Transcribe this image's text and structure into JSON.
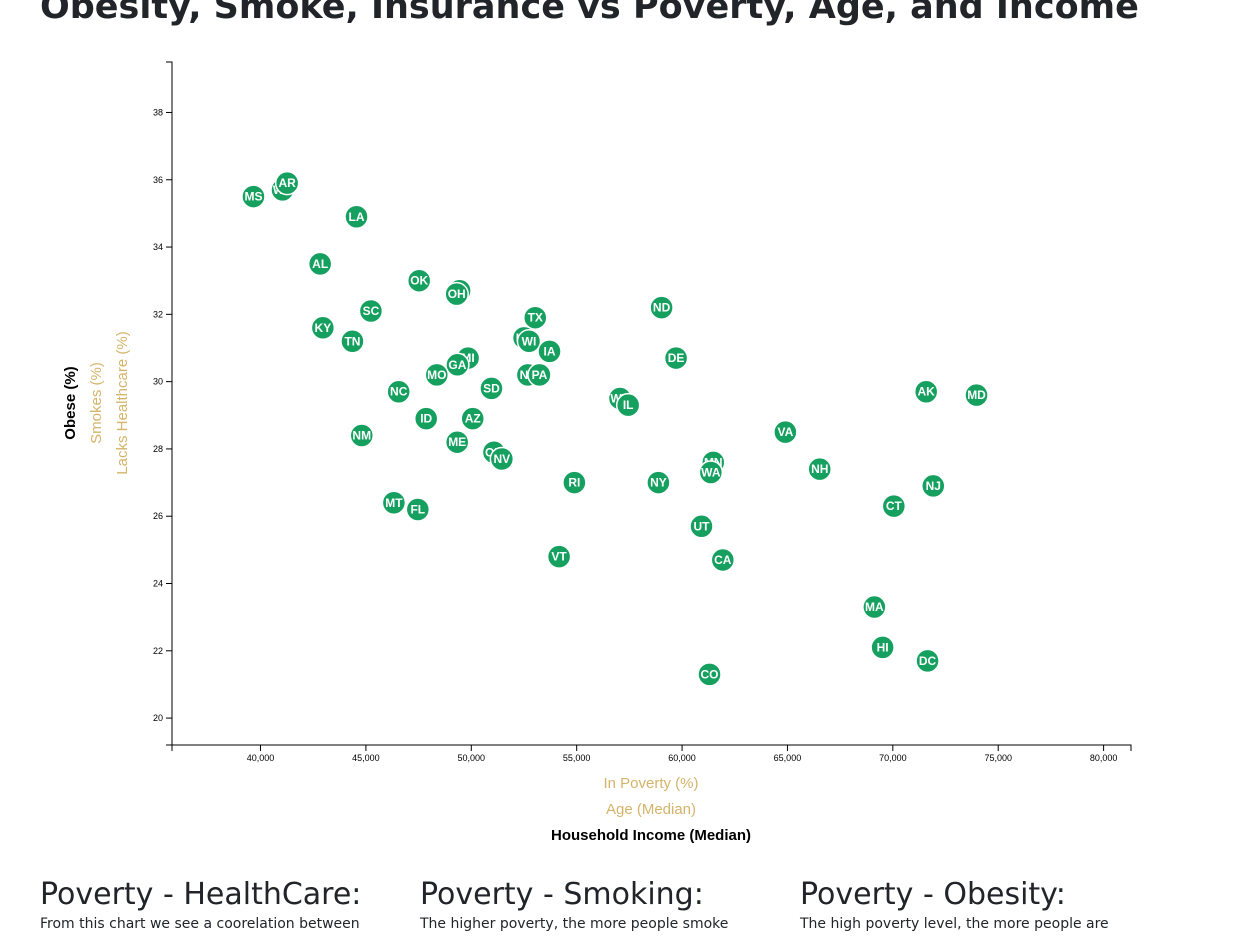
{
  "page": {
    "title": "Obesity, Smoke, Insurance vs Poverty, Age, and Income"
  },
  "chart_data": {
    "type": "scatter",
    "x_axis_labels": [
      {
        "text": "In Poverty (%)",
        "active": false
      },
      {
        "text": "Age (Median)",
        "active": false
      },
      {
        "text": "Household Income (Median)",
        "active": true
      }
    ],
    "y_axis_labels": [
      {
        "text": "Obese (%)",
        "active": true
      },
      {
        "text": "Smokes (%)",
        "active": false
      },
      {
        "text": "Lacks Healthcare (%)",
        "active": false
      }
    ],
    "xlim": [
      35800,
      81300
    ],
    "ylim": [
      19.2,
      39.5
    ],
    "x_ticks": [
      {
        "value": 40000,
        "label": "40,000"
      },
      {
        "value": 45000,
        "label": "45,000"
      },
      {
        "value": 50000,
        "label": "50,000"
      },
      {
        "value": 55000,
        "label": "55,000"
      },
      {
        "value": 60000,
        "label": "60,000"
      },
      {
        "value": 65000,
        "label": "65,000"
      },
      {
        "value": 70000,
        "label": "70,000"
      },
      {
        "value": 75000,
        "label": "75,000"
      },
      {
        "value": 80000,
        "label": "80,000"
      }
    ],
    "y_ticks": [
      {
        "value": 20,
        "label": "20"
      },
      {
        "value": 22,
        "label": "22"
      },
      {
        "value": 24,
        "label": "24"
      },
      {
        "value": 26,
        "label": "26"
      },
      {
        "value": 28,
        "label": "28"
      },
      {
        "value": 30,
        "label": "30"
      },
      {
        "value": 32,
        "label": "32"
      },
      {
        "value": 34,
        "label": "34"
      },
      {
        "value": 36,
        "label": "36"
      },
      {
        "value": 38,
        "label": "38"
      }
    ],
    "x_label": "Household Income (Median)",
    "y_label": "Obese (%)",
    "points": [
      {
        "abbr": "MS",
        "x": 39665,
        "y": 35.5
      },
      {
        "abbr": "WV",
        "x": 41043,
        "y": 35.7
      },
      {
        "abbr": "AR",
        "x": 41264,
        "y": 35.9
      },
      {
        "abbr": "LA",
        "x": 44555,
        "y": 34.9
      },
      {
        "abbr": "AL",
        "x": 42830,
        "y": 33.5
      },
      {
        "abbr": "OK",
        "x": 47529,
        "y": 33.0
      },
      {
        "abbr": "IN",
        "x": 49446,
        "y": 32.7
      },
      {
        "abbr": "OH",
        "x": 49308,
        "y": 32.6
      },
      {
        "abbr": "SC",
        "x": 45238,
        "y": 32.1
      },
      {
        "abbr": "KY",
        "x": 42958,
        "y": 31.6
      },
      {
        "abbr": "TN",
        "x": 44361,
        "y": 31.2
      },
      {
        "abbr": "TX",
        "x": 53035,
        "y": 31.9
      },
      {
        "abbr": "KS",
        "x": 52504,
        "y": 31.3
      },
      {
        "abbr": "WI",
        "x": 52738,
        "y": 31.2
      },
      {
        "abbr": "IA",
        "x": 53712,
        "y": 30.9
      },
      {
        "abbr": "ND",
        "x": 59029,
        "y": 32.2
      },
      {
        "abbr": "DE",
        "x": 59716,
        "y": 30.7
      },
      {
        "abbr": "MI",
        "x": 49847,
        "y": 30.7
      },
      {
        "abbr": "GA",
        "x": 49342,
        "y": 30.5
      },
      {
        "abbr": "MO",
        "x": 48363,
        "y": 30.2
      },
      {
        "abbr": "NE",
        "x": 52686,
        "y": 30.2
      },
      {
        "abbr": "PA",
        "x": 53234,
        "y": 30.2
      },
      {
        "abbr": "SD",
        "x": 50957,
        "y": 29.8
      },
      {
        "abbr": "NC",
        "x": 46556,
        "y": 29.7
      },
      {
        "abbr": "WY",
        "x": 57055,
        "y": 29.5
      },
      {
        "abbr": "IL",
        "x": 57444,
        "y": 29.3
      },
      {
        "abbr": "AK",
        "x": 71583,
        "y": 29.7
      },
      {
        "abbr": "MD",
        "x": 73971,
        "y": 29.6
      },
      {
        "abbr": "ID",
        "x": 47861,
        "y": 28.9
      },
      {
        "abbr": "AZ",
        "x": 50068,
        "y": 28.9
      },
      {
        "abbr": "NM",
        "x": 44803,
        "y": 28.4
      },
      {
        "abbr": "VA",
        "x": 64902,
        "y": 28.5
      },
      {
        "abbr": "ME",
        "x": 49331,
        "y": 28.2
      },
      {
        "abbr": "OR",
        "x": 51075,
        "y": 27.9
      },
      {
        "abbr": "NV",
        "x": 51450,
        "y": 27.7
      },
      {
        "abbr": "MN",
        "x": 61481,
        "y": 27.6
      },
      {
        "abbr": "WA",
        "x": 61366,
        "y": 27.3
      },
      {
        "abbr": "NH",
        "x": 66532,
        "y": 27.4
      },
      {
        "abbr": "RI",
        "x": 54891,
        "y": 27.0
      },
      {
        "abbr": "NY",
        "x": 58878,
        "y": 27.0
      },
      {
        "abbr": "NJ",
        "x": 71919,
        "y": 26.9
      },
      {
        "abbr": "MT",
        "x": 46328,
        "y": 26.4
      },
      {
        "abbr": "FL",
        "x": 47463,
        "y": 26.2
      },
      {
        "abbr": "CT",
        "x": 70048,
        "y": 26.3
      },
      {
        "abbr": "UT",
        "x": 60922,
        "y": 25.7
      },
      {
        "abbr": "VT",
        "x": 54166,
        "y": 24.8
      },
      {
        "abbr": "CA",
        "x": 61933,
        "y": 24.7
      },
      {
        "abbr": "MA",
        "x": 69125,
        "y": 23.3
      },
      {
        "abbr": "HI",
        "x": 69515,
        "y": 22.1
      },
      {
        "abbr": "DC",
        "x": 71648,
        "y": 21.7
      },
      {
        "abbr": "CO",
        "x": 61303,
        "y": 21.3
      }
    ],
    "colors": {
      "point": "#16a05f",
      "inactive_label": "#d4b46a",
      "active_label": "#000000"
    }
  },
  "sections": [
    {
      "heading": "Poverty - HealthCare:",
      "text": "From this chart we see a coorelation between"
    },
    {
      "heading": "Poverty - Smoking:",
      "text": "The higher poverty, the more people smoke"
    },
    {
      "heading": "Poverty - Obesity:",
      "text": "The high poverty level, the more people are"
    }
  ]
}
